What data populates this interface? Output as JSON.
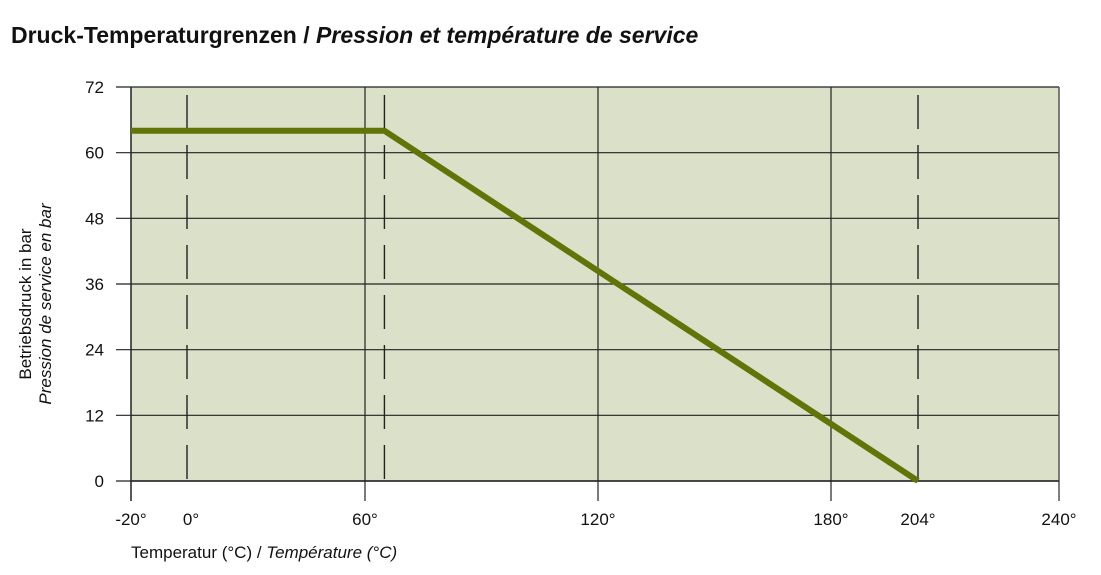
{
  "title_de": "Druck-Temperaturgrenzen",
  "title_sep": " / ",
  "title_fr": "Pression et température de service",
  "chart_data": {
    "type": "line",
    "xlabel_de": "Temperatur (°C)",
    "xlabel_fr": "Température (°C)",
    "ylabel_de": "Betriebsdruck in bar",
    "ylabel_fr": "Pression de service en bar",
    "xlim": [
      -20,
      240
    ],
    "ylim": [
      0,
      72
    ],
    "x_ticks": [
      -20,
      0,
      60,
      120,
      180,
      204,
      240
    ],
    "x_tick_labels": [
      "-20°",
      "0°",
      "60°",
      "120°",
      "180°",
      "204°",
      "240°"
    ],
    "y_ticks": [
      0,
      12,
      24,
      36,
      48,
      60,
      72
    ],
    "solid_vertical_gridlines": [
      60,
      120,
      180
    ],
    "dashed_vertical_gridlines": [
      0,
      65,
      204
    ],
    "grid": true,
    "series": [
      {
        "x": [
          -20,
          65,
          204
        ],
        "y": [
          64,
          64,
          0
        ]
      }
    ],
    "colors": {
      "line": "#617407",
      "plot_background": "#dbe0c8"
    }
  }
}
